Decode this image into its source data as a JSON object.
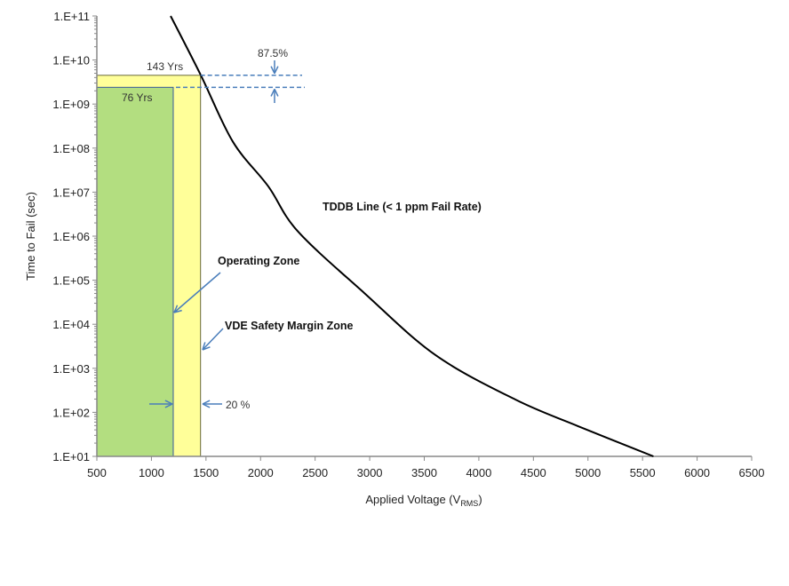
{
  "chart_data": {
    "type": "line",
    "xlabel": "Applied Voltage (V",
    "xlabel_sub": "RMS",
    "xlabel_end": ")",
    "ylabel": "Time to Fail (sec)",
    "xlim": [
      500,
      6500
    ],
    "ylim": [
      10.0,
      100000000000.0
    ],
    "yscale": "log",
    "xticks": [
      "500",
      "1000",
      "1500",
      "2000",
      "2500",
      "3000",
      "3500",
      "4000",
      "4500",
      "5000",
      "5500",
      "6000",
      "6500"
    ],
    "yticks": [
      "1.E+01",
      "1.E+02",
      "1.E+03",
      "1.E+04",
      "1.E+05",
      "1.E+06",
      "1.E+07",
      "1.E+08",
      "1.E+09",
      "1.E+10",
      "1.E+11"
    ],
    "grid": false,
    "series": [
      {
        "name": "TDDB Line (< 1 ppm Fail Rate)",
        "color": "#000000",
        "x": [
          1176,
          1453,
          1746,
          2071,
          2340,
          2951,
          3602,
          4335,
          4905,
          5600
        ],
        "y": [
          100000000000.0,
          4500000000.0,
          140000000.0,
          13500000.0,
          1300000.0,
          51000.0,
          2000.0,
          195,
          49,
          10
        ]
      }
    ],
    "zones": [
      {
        "name": "VDE Safety Margin Zone",
        "x_max": 1450,
        "y_max": 4500000000.0,
        "color": "#ffff99",
        "label": "143 Yrs"
      },
      {
        "name": "Operating Zone",
        "x_max": 1200,
        "y_max": 2400000000.0,
        "color": "#b3de80",
        "label": "76 Yrs"
      }
    ],
    "annotations": {
      "tddb": "TDDB Line (< 1 ppm Fail Rate)",
      "operating": "Operating  Zone",
      "vde": "VDE Safety Margin Zone",
      "margin_v": "20 %",
      "margin_t": "87.5%"
    },
    "arrow_color": "#4a7ebb"
  }
}
